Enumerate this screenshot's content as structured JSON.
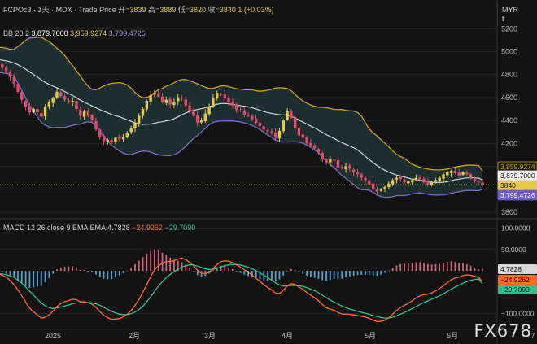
{
  "header": {
    "symbol": "FCPOc3",
    "sep1": "·",
    "interval": "1天",
    "sep2": "·",
    "exchange": "MDX",
    "sep3": "·",
    "price_type": "Trade Price",
    "open_label": "开=",
    "open": "3839",
    "high_label": "高=",
    "high": "3889",
    "low_label": "低=",
    "low": "3820",
    "close_label": "收=",
    "close": "3840",
    "change": "1 (+0.03%)"
  },
  "currency": {
    "value": "MYR",
    "sub": "t"
  },
  "bb_legend": {
    "label": "BB 20 2",
    "basis": "3,879.7000",
    "upper": "3,959.9274",
    "lower": "3,799.4726"
  },
  "macd_legend": {
    "label": "MACD 12 26 close 9 EMA EMA",
    "hist": "4.7828",
    "macd": "−24.9262",
    "signal": "−29.7090"
  },
  "watermark": "FX678",
  "colors": {
    "background": "#131313",
    "up": "#e4c94b",
    "down": "#e04b6f",
    "bb_upper": "#c9a227",
    "bb_lower": "#7f6bc4",
    "bb_basis": "#cfd8dc",
    "bb_fill": "#1e3434",
    "macd": "#ff6a2b",
    "signal": "#2ec28e",
    "hist_pos": "#e66c8a",
    "hist_neg": "#5ab3e6"
  },
  "chart_data": [
    {
      "type": "candlestick",
      "title": "FCPOc3 · 1天 · MDX · Trade Price",
      "xlabel": "",
      "ylabel": "",
      "ylim": [
        3550,
        5450
      ],
      "y_ticks": [
        3600,
        3800,
        4000,
        4200,
        4400,
        4600,
        4800,
        5000,
        5200
      ],
      "y_tick_labels": [
        "3600",
        "",
        "",
        "4200",
        "4400",
        "4600",
        "4800",
        "5000",
        "5200"
      ],
      "x_tick_labels": [
        "2025",
        "2月",
        "3月",
        "4月",
        "5月",
        "6月",
        "7"
      ],
      "closes": [
        4890,
        4860,
        4830,
        4780,
        4720,
        4650,
        4580,
        4520,
        4470,
        4500,
        4470,
        4430,
        4520,
        4560,
        4600,
        4650,
        4610,
        4580,
        4560,
        4570,
        4500,
        4440,
        4480,
        4440,
        4400,
        4320,
        4260,
        4220,
        4230,
        4210,
        4250,
        4240,
        4260,
        4290,
        4330,
        4380,
        4440,
        4500,
        4570,
        4620,
        4640,
        4610,
        4560,
        4580,
        4540,
        4560,
        4600,
        4590,
        4530,
        4480,
        4440,
        4380,
        4400,
        4460,
        4520,
        4600,
        4640,
        4630,
        4590,
        4560,
        4530,
        4490,
        4480,
        4450,
        4440,
        4410,
        4380,
        4350,
        4320,
        4310,
        4290,
        4250,
        4310,
        4400,
        4480,
        4420,
        4330,
        4270,
        4250,
        4200,
        4180,
        4160,
        4120,
        4060,
        4040,
        4060,
        4050,
        3990,
        3980,
        4000,
        3980,
        3950,
        3930,
        3900,
        3880,
        3840,
        3800,
        3780,
        3800,
        3820,
        3850,
        3880,
        3900,
        3890,
        3860,
        3870,
        3880,
        3900,
        3890,
        3860,
        3840,
        3860,
        3880,
        3900,
        3930,
        3950,
        3960,
        3940,
        3920,
        3950,
        3930,
        3900,
        3870,
        3860,
        3840
      ],
      "last_close": 3840,
      "bollinger": {
        "period": 20,
        "stddev": 2,
        "basis": 3879.7,
        "upper": 3959.9274,
        "lower": 3799.4726
      }
    },
    {
      "type": "macd",
      "title": "MACD 12 26 close 9 EMA EMA",
      "ylim": [
        -135,
        120
      ],
      "y_ticks": [
        100,
        50,
        -100
      ],
      "y_tick_labels": [
        "100.0000",
        "50.0000",
        "−100.0000"
      ],
      "histogram_last": 4.7828,
      "macd_last": -24.9262,
      "signal_last": -29.709
    }
  ]
}
